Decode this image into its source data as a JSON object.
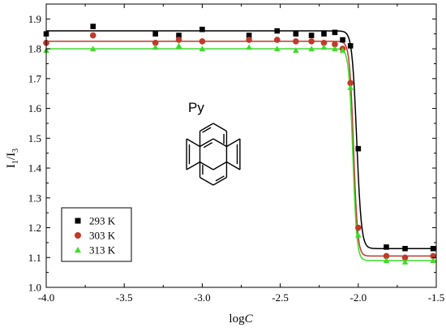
{
  "chart_data": {
    "type": "scatter",
    "title": "",
    "xlabel_main": "log",
    "xlabel_italic": "C",
    "ylabel_main": "I",
    "ylabel_sub1": "1",
    "ylabel_mid": "/I",
    "ylabel_sub2": "3",
    "xlim": [
      -4.0,
      -1.5
    ],
    "ylim": [
      1.0,
      1.95
    ],
    "xticks": [
      -4.0,
      -3.5,
      -3.0,
      -2.5,
      -2.0,
      -1.5
    ],
    "xtick_labels": [
      "-4.0",
      "-3.5",
      "-3.0",
      "-2.5",
      "-2.0",
      "-1.5"
    ],
    "yticks": [
      1.0,
      1.1,
      1.2,
      1.3,
      1.4,
      1.5,
      1.6,
      1.7,
      1.8,
      1.9
    ],
    "ytick_labels": [
      "1.0",
      "1.1",
      "1.2",
      "1.3",
      "1.4",
      "1.5",
      "1.6",
      "1.7",
      "1.8",
      "1.9"
    ],
    "grid": false,
    "legend_position": "bottom-left",
    "annotation": "Py",
    "series": [
      {
        "name": "293 K",
        "marker": "square",
        "color": "#000000",
        "points": [
          {
            "x": -4.0,
            "y": 1.85
          },
          {
            "x": -3.7,
            "y": 1.875
          },
          {
            "x": -3.3,
            "y": 1.85
          },
          {
            "x": -3.15,
            "y": 1.845
          },
          {
            "x": -3.0,
            "y": 1.865
          },
          {
            "x": -2.7,
            "y": 1.845
          },
          {
            "x": -2.52,
            "y": 1.86
          },
          {
            "x": -2.4,
            "y": 1.85
          },
          {
            "x": -2.3,
            "y": 1.845
          },
          {
            "x": -2.22,
            "y": 1.85
          },
          {
            "x": -2.15,
            "y": 1.855
          },
          {
            "x": -2.1,
            "y": 1.83
          },
          {
            "x": -2.05,
            "y": 1.81
          },
          {
            "x": -2.0,
            "y": 1.465
          },
          {
            "x": -1.82,
            "y": 1.135
          },
          {
            "x": -1.7,
            "y": 1.13
          },
          {
            "x": -1.52,
            "y": 1.13
          }
        ],
        "fit": {
          "upper": 1.86,
          "lower": 1.13,
          "x0": -2.01,
          "dx": 0.015
        }
      },
      {
        "name": "303 K",
        "marker": "circle",
        "color": "#c0392b",
        "points": [
          {
            "x": -4.0,
            "y": 1.82
          },
          {
            "x": -3.7,
            "y": 1.845
          },
          {
            "x": -3.3,
            "y": 1.82
          },
          {
            "x": -3.15,
            "y": 1.83
          },
          {
            "x": -3.0,
            "y": 1.825
          },
          {
            "x": -2.7,
            "y": 1.83
          },
          {
            "x": -2.52,
            "y": 1.83
          },
          {
            "x": -2.4,
            "y": 1.825
          },
          {
            "x": -2.3,
            "y": 1.825
          },
          {
            "x": -2.22,
            "y": 1.82
          },
          {
            "x": -2.15,
            "y": 1.815
          },
          {
            "x": -2.1,
            "y": 1.8
          },
          {
            "x": -2.05,
            "y": 1.685
          },
          {
            "x": -2.0,
            "y": 1.2
          },
          {
            "x": -1.82,
            "y": 1.105
          },
          {
            "x": -1.7,
            "y": 1.1
          },
          {
            "x": -1.52,
            "y": 1.105
          }
        ],
        "fit": {
          "upper": 1.825,
          "lower": 1.105,
          "x0": -2.03,
          "dx": 0.013
        }
      },
      {
        "name": "313 K",
        "marker": "triangle",
        "color": "#3ddc2a",
        "points": [
          {
            "x": -4.0,
            "y": 1.795
          },
          {
            "x": -3.7,
            "y": 1.8
          },
          {
            "x": -3.3,
            "y": 1.805
          },
          {
            "x": -3.15,
            "y": 1.81
          },
          {
            "x": -3.0,
            "y": 1.8
          },
          {
            "x": -2.7,
            "y": 1.805
          },
          {
            "x": -2.52,
            "y": 1.8
          },
          {
            "x": -2.4,
            "y": 1.795
          },
          {
            "x": -2.3,
            "y": 1.8
          },
          {
            "x": -2.22,
            "y": 1.805
          },
          {
            "x": -2.15,
            "y": 1.8
          },
          {
            "x": -2.1,
            "y": 1.795
          },
          {
            "x": -2.05,
            "y": 1.67
          },
          {
            "x": -2.0,
            "y": 1.175
          },
          {
            "x": -1.82,
            "y": 1.09
          },
          {
            "x": -1.7,
            "y": 1.085
          },
          {
            "x": -1.52,
            "y": 1.09
          }
        ],
        "fit": {
          "upper": 1.8,
          "lower": 1.09,
          "x0": -2.035,
          "dx": 0.013
        }
      }
    ]
  }
}
